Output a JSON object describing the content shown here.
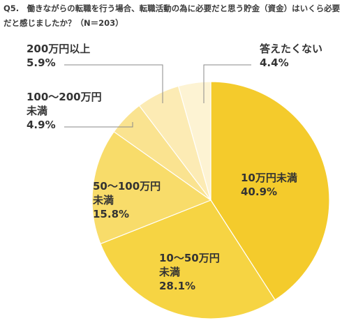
{
  "title": "Q5.　働きながらの転職を行う場合、転職活動の為に必要だと思う貯金（資金）はいくら必要だと感じましたか？（N＝203）",
  "chart_data": {
    "type": "pie",
    "title": "Q5.　働きながらの転職を行う場合、転職活動の為に必要だと思う貯金（資金）はいくら必要だと感じましたか？（N＝203）",
    "unit": "%",
    "order": "clockwise from 12 o'clock",
    "slices": [
      {
        "label": "10万円未満",
        "lines": [
          "10万円未満"
        ],
        "value": 40.9,
        "value_text": "40.9%",
        "color": "#f4cb2c"
      },
      {
        "label": "10〜50万円未満",
        "lines": [
          "10〜50万円",
          "未満"
        ],
        "value": 28.1,
        "value_text": "28.1%",
        "color": "#f6d443"
      },
      {
        "label": "50〜100万円未満",
        "lines": [
          "50〜100万円",
          "未満"
        ],
        "value": 15.8,
        "value_text": "15.8%",
        "color": "#f8dc6a"
      },
      {
        "label": "100〜200万円未満",
        "lines": [
          "100〜200万円",
          "未満"
        ],
        "value": 4.9,
        "value_text": "4.9%",
        "color": "#fae390"
      },
      {
        "label": "200万円以上",
        "lines": [
          "200万円以上"
        ],
        "value": 5.9,
        "value_text": "5.9%",
        "color": "#fcebb4"
      },
      {
        "label": "答えたくない",
        "lines": [
          "答えたくない"
        ],
        "value": 4.4,
        "value_text": "4.4%",
        "color": "#fdf3d3"
      }
    ]
  }
}
